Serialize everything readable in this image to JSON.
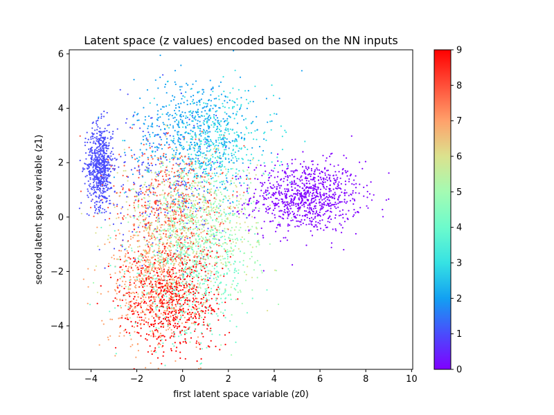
{
  "chart_data": {
    "type": "scatter",
    "title": "Latent space (z values) encoded based on the NN inputs",
    "xlabel": "first latent space variable (z0)",
    "ylabel": "second latent space variable (z1)",
    "xlim": [
      -4.95,
      10.05
    ],
    "ylim": [
      -5.6,
      6.15
    ],
    "xticks": [
      -4,
      -2,
      0,
      2,
      4,
      6,
      8,
      10
    ],
    "yticks": [
      -4,
      -2,
      0,
      2,
      4,
      6
    ],
    "xtick_labels": [
      "−4",
      "−2",
      "0",
      "2",
      "4",
      "6",
      "8",
      "10"
    ],
    "ytick_labels": [
      "−4",
      "−2",
      "0",
      "2",
      "4",
      "6"
    ],
    "grid": false,
    "colormap": "rainbow",
    "colorbar": {
      "label": "",
      "range": [
        0,
        9
      ],
      "ticks": [
        0,
        1,
        2,
        3,
        4,
        5,
        6,
        7,
        8,
        9
      ],
      "tick_labels": [
        "0",
        "1",
        "2",
        "3",
        "4",
        "5",
        "6",
        "7",
        "8",
        "9"
      ],
      "colors": [
        "#8000ff",
        "#4a4cfc",
        "#12a0f2",
        "#36e2e3",
        "#6dfbcc",
        "#a4fbb3",
        "#dbe28e",
        "#ffa16b",
        "#ff4f39",
        "#ff0000"
      ]
    },
    "clusters": [
      {
        "label": 0,
        "center": [
          5.4,
          0.75
        ],
        "spread": [
          1.2,
          0.65
        ],
        "count": 900
      },
      {
        "label": 1,
        "center": [
          -3.6,
          1.9
        ],
        "spread": [
          0.28,
          0.75
        ],
        "count": 650
      },
      {
        "label": 1,
        "center": [
          -1.0,
          1.2
        ],
        "spread": [
          1.5,
          1.4
        ],
        "count": 250
      },
      {
        "label": 2,
        "center": [
          0.5,
          3.2
        ],
        "spread": [
          1.3,
          1.0
        ],
        "count": 520
      },
      {
        "label": 3,
        "center": [
          1.4,
          2.6
        ],
        "spread": [
          1.3,
          1.0
        ],
        "count": 420
      },
      {
        "label": 4,
        "center": [
          0.3,
          -2.0
        ],
        "spread": [
          1.3,
          1.3
        ],
        "count": 520
      },
      {
        "label": 5,
        "center": [
          0.8,
          -0.5
        ],
        "spread": [
          1.3,
          1.3
        ],
        "count": 460
      },
      {
        "label": 6,
        "center": [
          0.2,
          -0.2
        ],
        "spread": [
          1.5,
          1.3
        ],
        "count": 520
      },
      {
        "label": 7,
        "center": [
          -1.2,
          -2.3
        ],
        "spread": [
          1.0,
          1.2
        ],
        "count": 620
      },
      {
        "label": 8,
        "center": [
          -0.6,
          0.6
        ],
        "spread": [
          1.2,
          1.1
        ],
        "count": 430
      },
      {
        "label": 9,
        "center": [
          -0.5,
          -3.0
        ],
        "spread": [
          1.1,
          1.0
        ],
        "count": 720
      }
    ]
  }
}
